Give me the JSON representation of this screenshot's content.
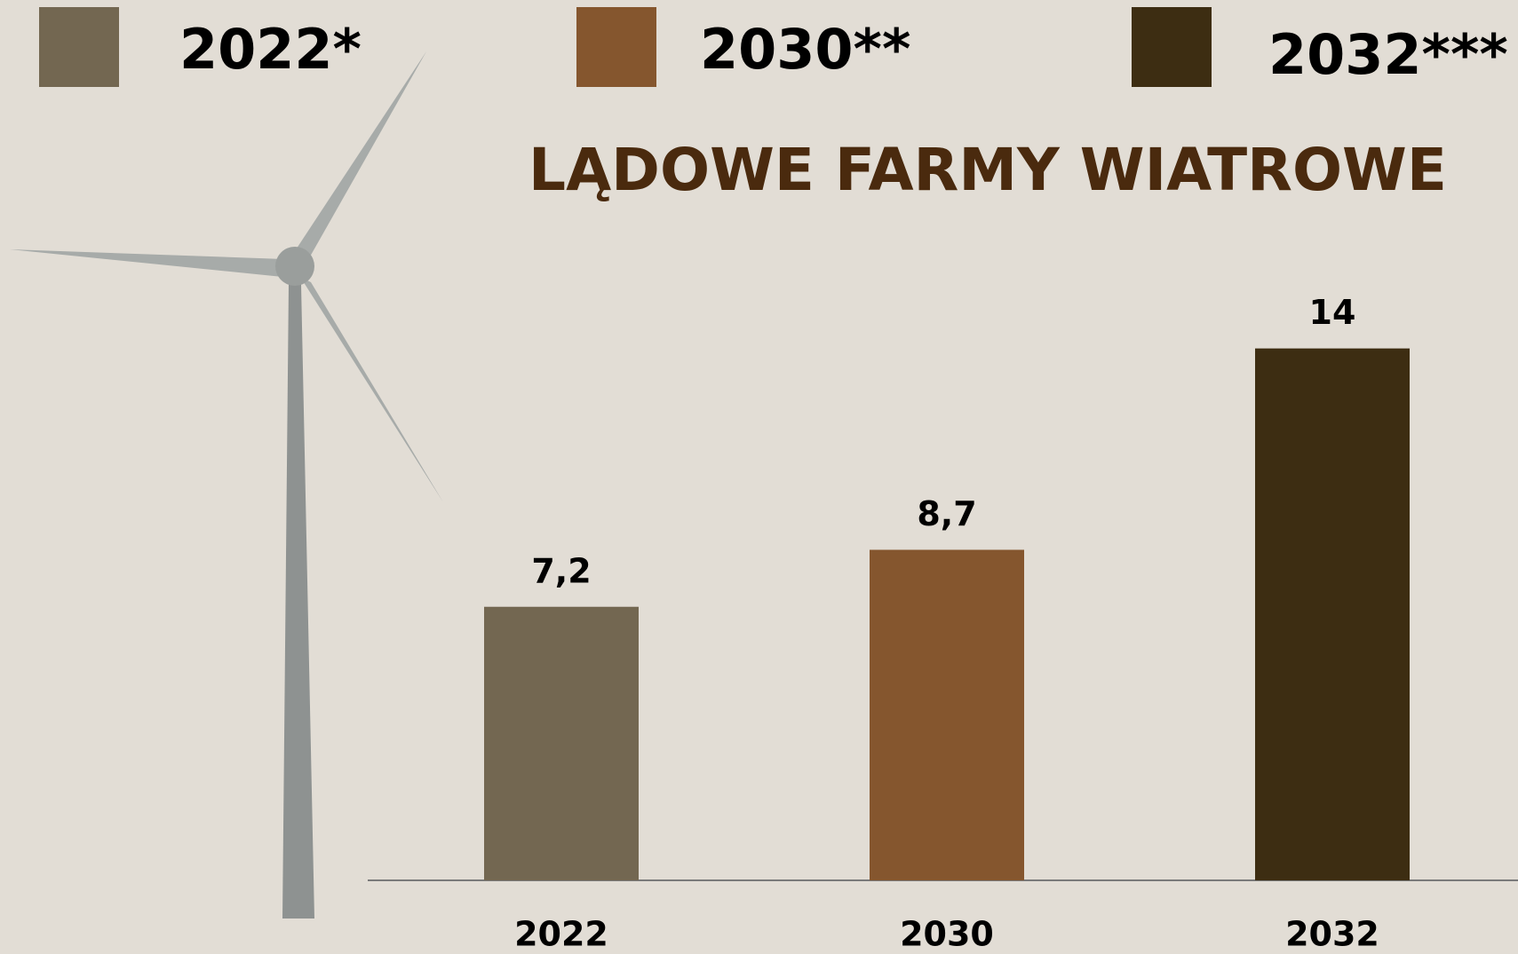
{
  "chart_data": {
    "type": "bar",
    "title": "LĄDOWE FARMY WIATROWE",
    "categories": [
      "2022",
      "2030",
      "2032"
    ],
    "values": [
      7.2,
      8.7,
      14
    ],
    "value_labels": [
      "7,2",
      "8,7",
      "14"
    ],
    "colors": [
      "#736751",
      "#85562e",
      "#3d2d12"
    ],
    "legend": [
      "2022*",
      "2030**",
      "2032***"
    ],
    "ylim": [
      0,
      16
    ]
  }
}
